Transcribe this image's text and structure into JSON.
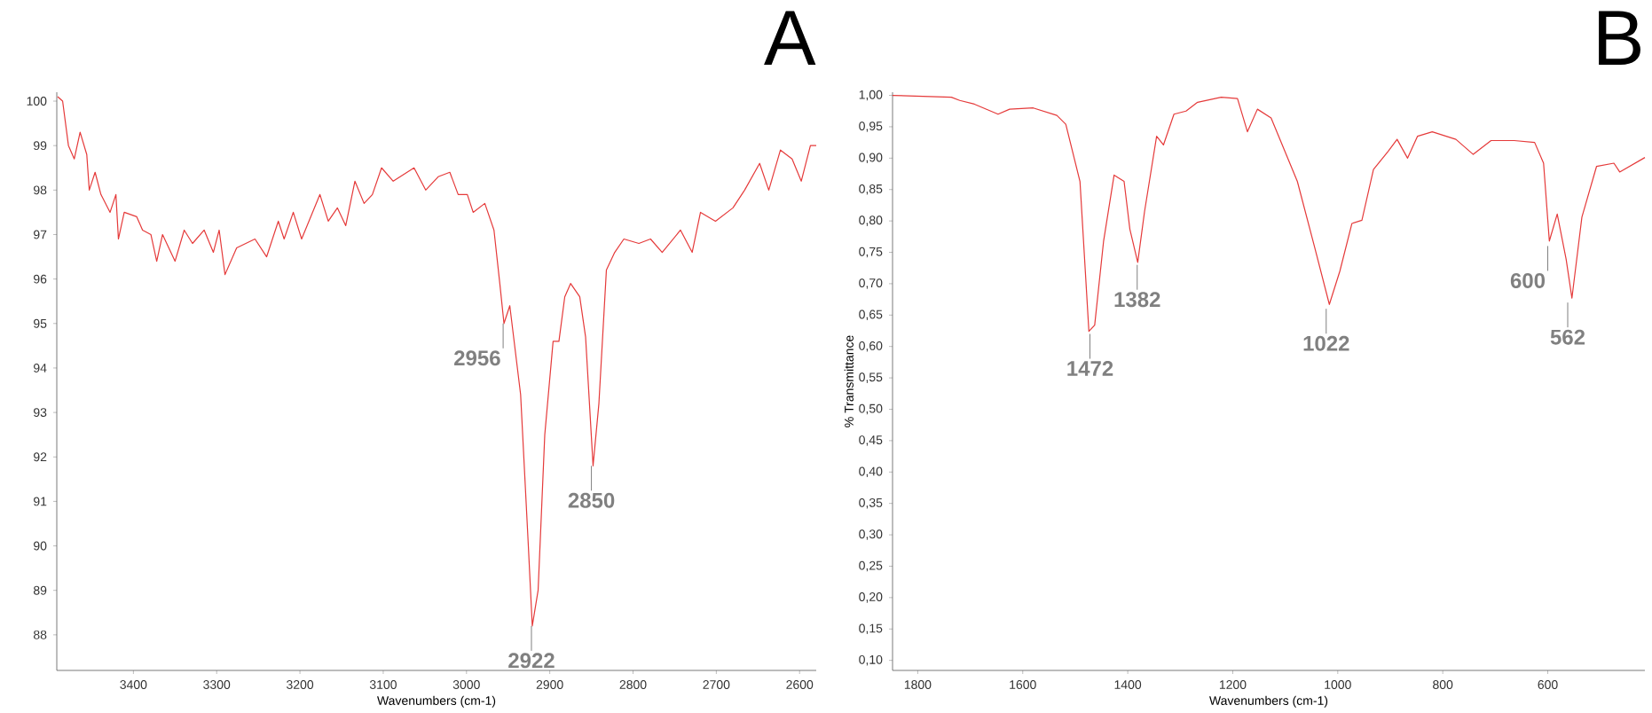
{
  "chart_data": [
    {
      "type": "line",
      "title": "A",
      "xlabel": "Wavenumbers (cm-1)",
      "xlim": [
        3492,
        2580
      ],
      "ylim": [
        87.2,
        100.2
      ],
      "xticks": [
        3400,
        3300,
        3200,
        3100,
        3000,
        2900,
        2800,
        2700,
        2600
      ],
      "yticks": [
        88,
        89,
        90,
        91,
        92,
        93,
        94,
        95,
        96,
        97,
        98,
        99,
        100
      ],
      "x": [
        3491,
        3485,
        3478,
        3471,
        3464,
        3456,
        3453,
        3446,
        3439,
        3428,
        3421,
        3418,
        3411,
        3396,
        3389,
        3379,
        3372,
        3365,
        3350,
        3339,
        3329,
        3315,
        3304,
        3297,
        3290,
        3276,
        3254,
        3240,
        3226,
        3219,
        3208,
        3198,
        3176,
        3166,
        3155,
        3145,
        3134,
        3123,
        3113,
        3102,
        3088,
        3063,
        3049,
        3034,
        3020,
        3010,
        2999,
        2992,
        2978,
        2967,
        2960,
        2955,
        2948,
        2935,
        2926,
        2921,
        2914,
        2906,
        2896,
        2889,
        2882,
        2875,
        2864,
        2857,
        2848,
        2841,
        2832,
        2822,
        2811,
        2793,
        2779,
        2765,
        2743,
        2729,
        2719,
        2701,
        2680,
        2666,
        2648,
        2637,
        2623,
        2609,
        2598,
        2587,
        2580
      ],
      "series": [
        {
          "color": "#e53a3a",
          "values": [
            100.1,
            100.0,
            99.0,
            98.7,
            99.3,
            98.8,
            98.0,
            98.4,
            97.9,
            97.5,
            97.9,
            96.9,
            97.5,
            97.4,
            97.1,
            97.0,
            96.4,
            97.0,
            96.4,
            97.1,
            96.8,
            97.1,
            96.6,
            97.1,
            96.1,
            96.7,
            96.9,
            96.5,
            97.3,
            96.9,
            97.5,
            96.9,
            97.9,
            97.3,
            97.6,
            97.2,
            98.2,
            97.7,
            97.9,
            98.5,
            98.2,
            98.5,
            98.0,
            98.3,
            98.4,
            97.9,
            97.9,
            97.5,
            97.7,
            97.1,
            95.9,
            95.0,
            95.4,
            93.4,
            90.1,
            88.2,
            89.0,
            92.5,
            94.6,
            94.6,
            95.6,
            95.9,
            95.6,
            94.7,
            91.8,
            93.2,
            96.2,
            96.6,
            96.9,
            96.8,
            96.9,
            96.6,
            97.1,
            96.6,
            97.5,
            97.3,
            97.6,
            98.0,
            98.6,
            98.0,
            98.9,
            98.7,
            98.2,
            99.0,
            99.0
          ]
        }
      ],
      "annotations": [
        {
          "text": "2956",
          "x": 2956,
          "y": 95.0
        },
        {
          "text": "2922",
          "x": 2922,
          "y": 88.2
        },
        {
          "text": "2850",
          "x": 2850,
          "y": 91.8
        }
      ]
    },
    {
      "type": "line",
      "title": "B",
      "xlabel": "Wavenumbers (cm-1)",
      "ylabel": "% Transmittance",
      "xlim": [
        1848,
        415
      ],
      "ylim": [
        0.084,
        1.005
      ],
      "xticks": [
        1800,
        1600,
        1400,
        1200,
        1000,
        800,
        600
      ],
      "yticks": [
        {
          "value": 0.1,
          "label": "0,10"
        },
        {
          "value": 0.15,
          "label": "0,15"
        },
        {
          "value": 0.2,
          "label": "0,20"
        },
        {
          "value": 0.25,
          "label": "0,25"
        },
        {
          "value": 0.3,
          "label": "0,30"
        },
        {
          "value": 0.35,
          "label": "0,35"
        },
        {
          "value": 0.4,
          "label": "0,40"
        },
        {
          "value": 0.45,
          "label": "0,45"
        },
        {
          "value": 0.5,
          "label": "0,50"
        },
        {
          "value": 0.55,
          "label": "0,55"
        },
        {
          "value": 0.6,
          "label": "0,60"
        },
        {
          "value": 0.65,
          "label": "0,65"
        },
        {
          "value": 0.7,
          "label": "0,70"
        },
        {
          "value": 0.75,
          "label": "0,75"
        },
        {
          "value": 0.8,
          "label": "0,80"
        },
        {
          "value": 0.85,
          "label": "0,85"
        },
        {
          "value": 0.9,
          "label": "0,90"
        },
        {
          "value": 0.95,
          "label": "0,95"
        },
        {
          "value": 1.0,
          "label": "1,00"
        }
      ],
      "x": [
        1848,
        1736,
        1720,
        1692,
        1647,
        1625,
        1580,
        1535,
        1518,
        1491,
        1474,
        1463,
        1446,
        1426,
        1407,
        1396,
        1381,
        1368,
        1345,
        1332,
        1312,
        1289,
        1267,
        1222,
        1191,
        1172,
        1153,
        1127,
        1077,
        1044,
        1016,
        996,
        973,
        954,
        932,
        904,
        887,
        867,
        848,
        820,
        775,
        742,
        708,
        664,
        625,
        608,
        597,
        582,
        565,
        554,
        535,
        507,
        474,
        463,
        415
      ],
      "series": [
        {
          "color": "#e53a3a",
          "values": [
            1.0,
            0.997,
            0.992,
            0.986,
            0.97,
            0.978,
            0.98,
            0.968,
            0.954,
            0.863,
            0.624,
            0.634,
            0.768,
            0.873,
            0.863,
            0.787,
            0.734,
            0.815,
            0.935,
            0.921,
            0.97,
            0.975,
            0.989,
            0.997,
            0.995,
            0.942,
            0.978,
            0.964,
            0.863,
            0.758,
            0.667,
            0.72,
            0.796,
            0.801,
            0.882,
            0.911,
            0.93,
            0.9,
            0.935,
            0.942,
            0.93,
            0.906,
            0.928,
            0.928,
            0.925,
            0.892,
            0.768,
            0.811,
            0.739,
            0.677,
            0.806,
            0.887,
            0.892,
            0.878,
            0.901
          ]
        }
      ],
      "annotations": [
        {
          "text": "1472",
          "x": 1472,
          "y": 0.62
        },
        {
          "text": "1382",
          "x": 1382,
          "y": 0.73
        },
        {
          "text": "1022",
          "x": 1022,
          "y": 0.66
        },
        {
          "text": "600",
          "x": 600,
          "y": 0.76
        },
        {
          "text": "562",
          "x": 562,
          "y": 0.67
        }
      ]
    }
  ]
}
